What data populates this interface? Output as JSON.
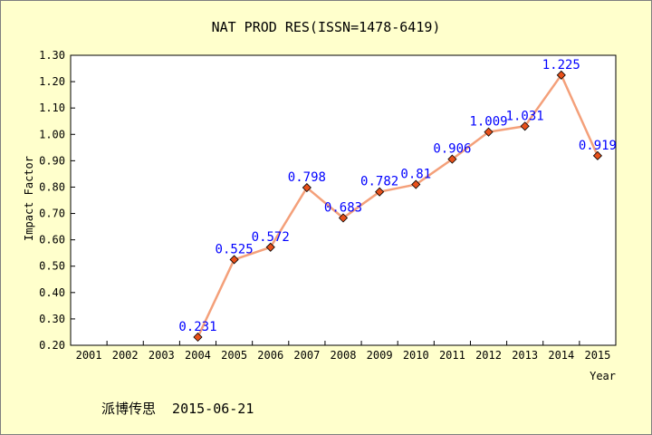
{
  "chart_data": {
    "type": "line",
    "title": "NAT PROD RES(ISSN=1478-6419)",
    "xlabel": "Year",
    "ylabel": "Impact Factor",
    "categories": [
      "2001",
      "2002",
      "2003",
      "2004",
      "2005",
      "2006",
      "2007",
      "2008",
      "2009",
      "2010",
      "2011",
      "2012",
      "2013",
      "2014",
      "2015"
    ],
    "series": [
      {
        "name": "Impact Factor",
        "values": [
          null,
          null,
          null,
          0.231,
          0.525,
          0.572,
          0.798,
          0.683,
          0.782,
          0.81,
          0.906,
          1.009,
          1.031,
          1.225,
          0.919
        ],
        "labels": [
          null,
          null,
          null,
          "0.231",
          "0.525",
          "0.572",
          "0.798",
          "0.683",
          "0.782",
          "0.81",
          "0.906",
          "1.009",
          "1.031",
          "1.225",
          "0.919"
        ]
      }
    ],
    "ylim": [
      0.2,
      1.3
    ],
    "yticks": [
      0.2,
      0.3,
      0.4,
      0.5,
      0.6,
      0.7,
      0.8,
      0.9,
      1.0,
      1.1,
      1.2,
      1.3
    ],
    "ytick_labels": [
      "0.20",
      "0.30",
      "0.40",
      "0.50",
      "0.60",
      "0.70",
      "0.80",
      "0.90",
      "1.00",
      "1.10",
      "1.20",
      "1.30"
    ],
    "grid": false,
    "line_color": "#f4a07a",
    "marker_color": "#e8501a",
    "label_color": "#0000ff"
  },
  "watermark": "派博传思  2015-06-21",
  "colors": {
    "background": "#ffffcc",
    "plot_background": "#ffffff"
  }
}
